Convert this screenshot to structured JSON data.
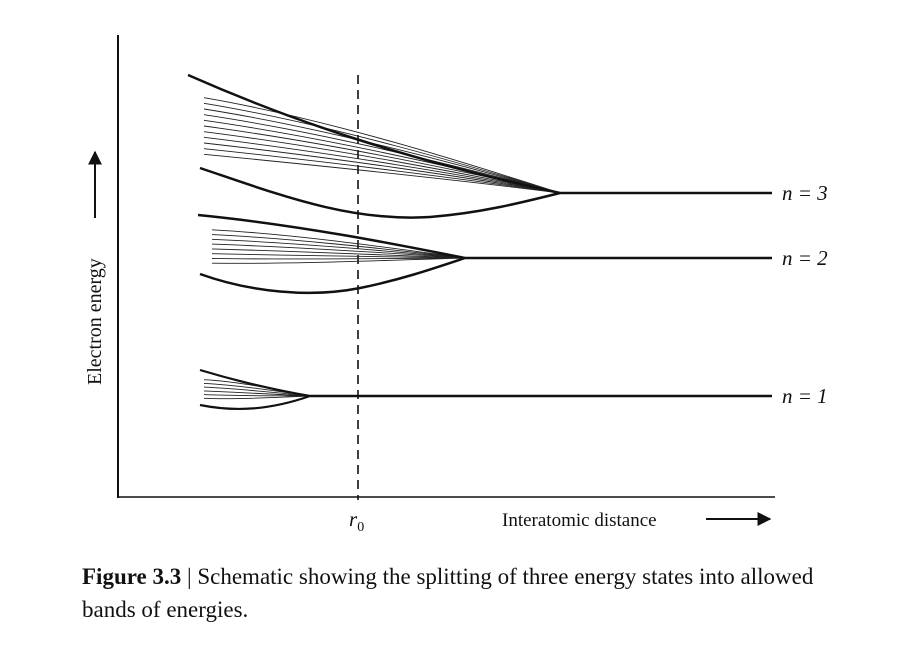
{
  "axes": {
    "y_label": "Electron energy",
    "x_label": "Interatomic distance",
    "x_marker": "r",
    "x_marker_sub": "0"
  },
  "levels": [
    {
      "label": "n = 3"
    },
    {
      "label": "n = 2"
    },
    {
      "label": "n = 1"
    }
  ],
  "caption": {
    "figure_label": "Figure 3.3",
    "separator": "|",
    "text": "Schematic showing the splitting of three energy states into allowed bands of energies."
  }
}
